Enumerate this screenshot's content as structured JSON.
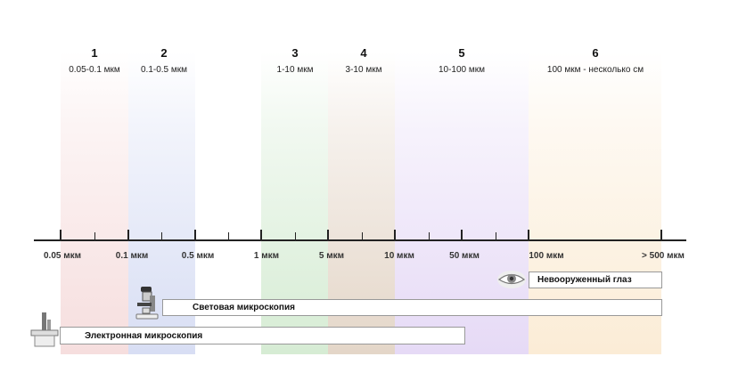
{
  "ranges": [
    {
      "num": "1",
      "range": "0.05-0.1 мкм",
      "color": "#f6dede"
    },
    {
      "num": "2",
      "range": "0.1-0.5 мкм",
      "color": "#d8def4"
    },
    {
      "num": "3",
      "range": "1-10 мкм",
      "color": "#d6ecd4"
    },
    {
      "num": "4",
      "range": "3-10 мкм",
      "color": "#e4d6c8"
    },
    {
      "num": "5",
      "range": "10-100 мкм",
      "color": "#e6daf6"
    },
    {
      "num": "6",
      "range": "100 мкм - несколько см",
      "color": "#fbecd6"
    }
  ],
  "axis_labels": [
    "0.05 мкм",
    "0.1 мкм",
    "0.5 мкм",
    "1 мкм",
    "5 мкм",
    "10 мкм",
    "50 мкм",
    "100 мкм",
    "> 500 мкм"
  ],
  "methods": {
    "eye": "Невооруженный глаз",
    "light": "Световая микроскопия",
    "electron": "Электронная микроскопия"
  }
}
